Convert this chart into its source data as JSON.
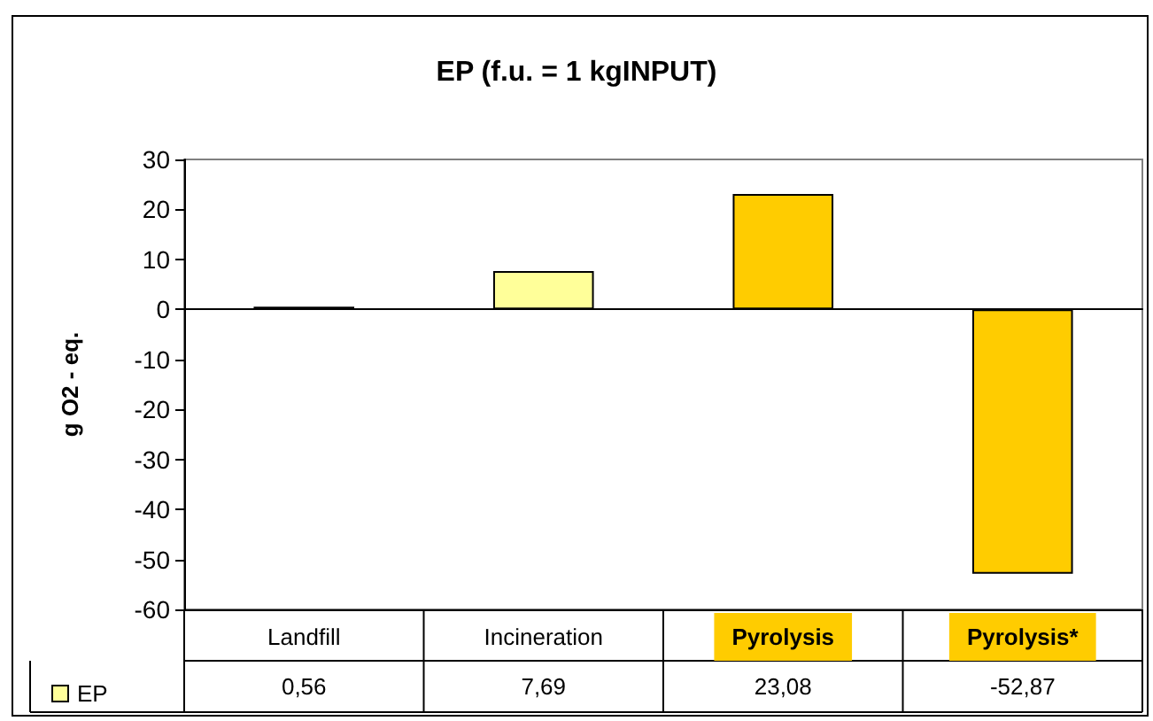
{
  "chart_data": {
    "type": "bar",
    "title": "EP (f.u. = 1 kgINPUT)",
    "ylabel": "g O2 - eq.",
    "categories": [
      "Landfill",
      "Incineration",
      "Pyrolysis",
      "Pyrolysis*"
    ],
    "series": [
      {
        "name": "EP",
        "color": "#ffff99",
        "colors": [
          "#ffff99",
          "#ffff99",
          "#ffcc00",
          "#ffcc00"
        ],
        "values": [
          0.56,
          7.69,
          23.08,
          -52.87
        ],
        "value_labels": [
          "0,56",
          "7,69",
          "23,08",
          "-52,87"
        ]
      }
    ],
    "ylim": [
      -60,
      30
    ],
    "yticks": [
      -60,
      -50,
      -40,
      -30,
      -20,
      -10,
      0,
      10,
      20,
      30
    ],
    "legend": "bottom left"
  }
}
